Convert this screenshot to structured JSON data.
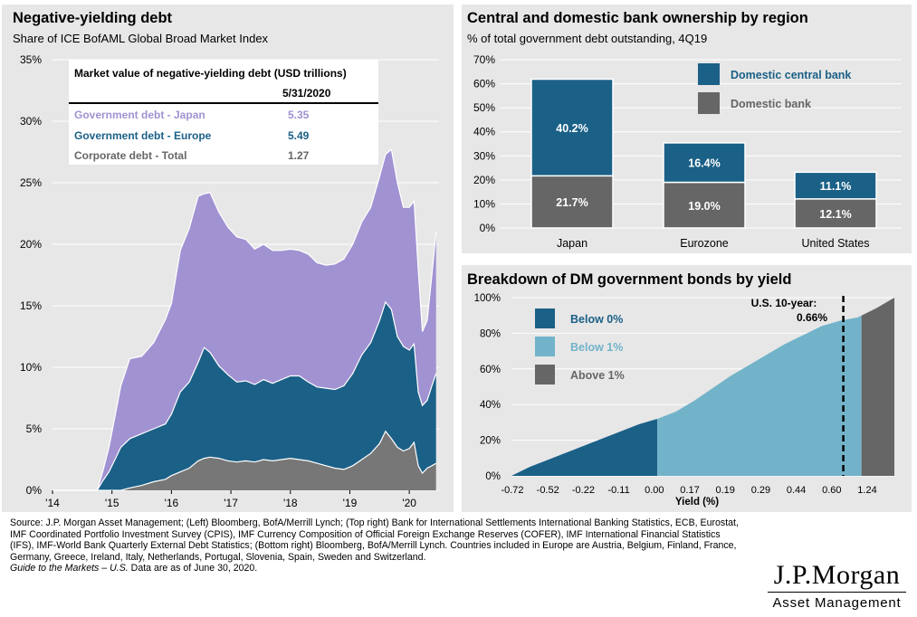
{
  "left": {
    "title": "Negative-yielding debt",
    "subtitle": "Share of ICE BofAML Global Broad Market Index",
    "colors": {
      "japan": "#a192d2",
      "europe": "#1b6087",
      "corporate": "#777777",
      "grid": "#ffffff"
    },
    "table": {
      "title": "Market value of negative-yielding debt (USD trillions)",
      "date": "5/31/2020",
      "rows": [
        {
          "label": "Government debt - Japan",
          "value": "5.35",
          "color": "#a192d2"
        },
        {
          "label": "Government debt - Europe",
          "value": "5.49",
          "color": "#1b6087"
        },
        {
          "label": "Corporate debt - Total",
          "value": "1.27",
          "color": "#666666"
        }
      ]
    }
  },
  "top_right": {
    "title": "Central and domestic bank ownership by region",
    "subtitle": "% of total government debt outstanding, 4Q19",
    "legend": [
      {
        "label": "Domestic central bank",
        "color": "#1b6087"
      },
      {
        "label": "Domestic bank",
        "color": "#666666"
      }
    ]
  },
  "bottom_right": {
    "title": "Breakdown of DM government bonds by yield",
    "legend": [
      {
        "label": "Below 0%",
        "color": "#1b6087"
      },
      {
        "label": "Below 1%",
        "color": "#72b3ca"
      },
      {
        "label": "Above 1%",
        "color": "#666666"
      }
    ],
    "annotation_line1": "U.S. 10-year:",
    "annotation_line2": "0.66%"
  },
  "source": {
    "text": "Source: J.P. Morgan Asset Management; (Left) Bloomberg, BofA/Merrill Lynch; (Top right) Bank for International Settlements International Banking Statistics, ECB, Eurostat, IMF Coordinated Portfolio Investment Survey (CPIS), IMF Currency Composition of Official Foreign Exchange Reserves (COFER), IMF International Financial Statistics (IFS), IMF-World Bank Quarterly External Debt Statistics; (Bottom right) Bloomberg, BofA/Merrill Lynch. Countries included in Europe are Austria, Belgium, Finland, France, Germany, Greece, Ireland, Italy, Netherlands, Portugal, Slovenia, Spain, Sweden and Switzerland.",
    "footer_italic": "Guide to the Markets – U.S.",
    "footer_rest": " Data are as of June 30, 2020."
  },
  "logo": {
    "line1": "J.P.Morgan",
    "line2": "Asset Management"
  },
  "chart_data": [
    {
      "type": "area",
      "stacked": true,
      "x_tick_labels": [
        "'14",
        "'15",
        "'16",
        "'17",
        "'18",
        "'19",
        "'20"
      ],
      "ylim": [
        0,
        35
      ],
      "y_tick_labels": [
        "0%",
        "5%",
        "10%",
        "15%",
        "20%",
        "25%",
        "30%",
        "35%"
      ],
      "x": [
        2014.0,
        2014.5,
        2014.65,
        2014.75,
        2014.85,
        2014.95,
        2015.05,
        2015.15,
        2015.3,
        2015.5,
        2015.7,
        2015.9,
        2016.0,
        2016.15,
        2016.3,
        2016.45,
        2016.55,
        2016.65,
        2016.8,
        2016.95,
        2017.1,
        2017.25,
        2017.4,
        2017.55,
        2017.7,
        2017.85,
        2018.0,
        2018.15,
        2018.3,
        2018.45,
        2018.6,
        2018.75,
        2018.9,
        2019.05,
        2019.2,
        2019.35,
        2019.5,
        2019.6,
        2019.7,
        2019.8,
        2019.9,
        2020.0,
        2020.08,
        2020.15,
        2020.22,
        2020.3,
        2020.38,
        2020.45
      ],
      "series": [
        {
          "name": "Corporate debt - Total",
          "values": [
            0,
            0,
            0,
            0,
            0,
            0,
            0,
            0,
            0.2,
            0.4,
            0.7,
            0.9,
            1.2,
            1.5,
            1.8,
            2.4,
            2.6,
            2.7,
            2.6,
            2.4,
            2.3,
            2.4,
            2.3,
            2.5,
            2.4,
            2.5,
            2.6,
            2.5,
            2.4,
            2.2,
            2.0,
            1.8,
            1.7,
            2.0,
            2.5,
            3.0,
            3.8,
            4.8,
            4.2,
            3.5,
            3.2,
            3.4,
            3.9,
            2.0,
            1.4,
            1.8,
            2.0,
            2.2
          ]
        },
        {
          "name": "Government debt - Europe",
          "values": [
            0,
            0,
            0,
            0,
            0.8,
            1.5,
            2.5,
            3.5,
            4.0,
            4.2,
            4.3,
            4.5,
            5.0,
            6.5,
            7.0,
            8.0,
            9.0,
            8.5,
            7.5,
            7.0,
            6.5,
            6.5,
            6.3,
            6.5,
            6.3,
            6.5,
            6.7,
            6.8,
            6.4,
            6.2,
            6.3,
            6.4,
            6.8,
            7.5,
            8.5,
            9.0,
            10.0,
            10.5,
            10.5,
            9.0,
            8.5,
            8.0,
            8.0,
            6.0,
            5.5,
            5.5,
            6.5,
            7.3
          ]
        },
        {
          "name": "Government debt - Japan",
          "values": [
            0,
            0,
            0,
            0,
            0.8,
            2.0,
            3.5,
            5.0,
            6.5,
            6.3,
            7.0,
            8.5,
            9.0,
            11.5,
            12.5,
            13.5,
            12.5,
            13.0,
            12.5,
            12.0,
            11.8,
            11.5,
            11.0,
            11.0,
            10.8,
            10.5,
            10.3,
            10.2,
            10.4,
            10.1,
            10.0,
            10.2,
            10.3,
            10.5,
            10.8,
            11.0,
            11.7,
            12.0,
            13.0,
            12.5,
            11.3,
            11.6,
            11.6,
            10.0,
            6.0,
            6.5,
            9.0,
            11.5
          ]
        }
      ]
    },
    {
      "type": "bar",
      "stacked": true,
      "categories": [
        "Japan",
        "Eurozone",
        "United States"
      ],
      "ylim": [
        0,
        70
      ],
      "y_tick_labels": [
        "0%",
        "10%",
        "20%",
        "30%",
        "40%",
        "50%",
        "60%",
        "70%"
      ],
      "series": [
        {
          "name": "Domestic bank",
          "values": [
            21.7,
            19.0,
            12.1
          ],
          "labels": [
            "21.7%",
            "19.0%",
            "12.1%"
          ]
        },
        {
          "name": "Domestic central bank",
          "values": [
            40.2,
            16.4,
            11.1
          ],
          "labels": [
            "40.2%",
            "16.4%",
            "11.1%"
          ]
        }
      ]
    },
    {
      "type": "area",
      "xlabel": "Yield (%)",
      "x_tick_labels": [
        "-0.72",
        "-0.52",
        "-0.22",
        "-0.11",
        "0.00",
        "0.17",
        "0.19",
        "0.29",
        "0.44",
        "0.60",
        "1.24"
      ],
      "ylim": [
        0,
        100
      ],
      "y_tick_labels": [
        "0%",
        "20%",
        "40%",
        "60%",
        "80%",
        "100%"
      ],
      "cumulative_share": [
        [
          0,
          0
        ],
        [
          0.5,
          5
        ],
        [
          1,
          9
        ],
        [
          1.5,
          13
        ],
        [
          2,
          17
        ],
        [
          2.5,
          21
        ],
        [
          3,
          25
        ],
        [
          3.5,
          29
        ],
        [
          4,
          32
        ],
        [
          4.5,
          36
        ],
        [
          5,
          42
        ],
        [
          5.5,
          49
        ],
        [
          6,
          56
        ],
        [
          6.5,
          62
        ],
        [
          7,
          68
        ],
        [
          7.5,
          74
        ],
        [
          8,
          79
        ],
        [
          8.5,
          84
        ],
        [
          9,
          87
        ],
        [
          9.5,
          89
        ],
        [
          10,
          94
        ],
        [
          10.5,
          100
        ]
      ],
      "segments": [
        {
          "name": "Below 0%",
          "to": 4.0
        },
        {
          "name": "Below 1%",
          "to": 9.6
        },
        {
          "name": "Above 1%",
          "to": 10.5
        }
      ],
      "marker_x": 9.1
    }
  ]
}
